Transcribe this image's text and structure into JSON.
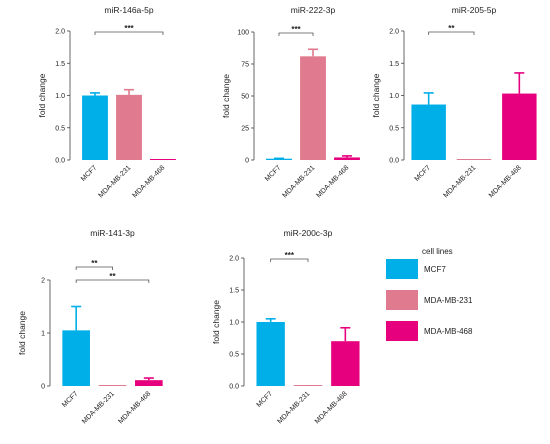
{
  "chart_data": [
    {
      "type": "bar",
      "title": "miR-146a-5p",
      "ylabel": "fold change",
      "categories": [
        "MCF7",
        "MDA-MB-231",
        "MDA-MB-468"
      ],
      "values": [
        1.0,
        1.01,
        0.01
      ],
      "errors": [
        0.04,
        0.08,
        0.0
      ],
      "ylim": [
        0,
        2.0
      ],
      "yticks": [
        "0.0",
        "0.5",
        "1.0",
        "1.5",
        "2.0"
      ],
      "significance": [
        {
          "from": 0,
          "to": 2,
          "label": "***"
        }
      ]
    },
    {
      "type": "bar",
      "title": "miR-222-3p",
      "ylabel": "fold change",
      "categories": [
        "MCF7",
        "MDA-MB-231",
        "MDA-MB-468"
      ],
      "values": [
        1.0,
        81.0,
        2.0
      ],
      "errors": [
        0.3,
        5.5,
        1.2
      ],
      "ylim": [
        0,
        100
      ],
      "yticks": [
        "0",
        "25",
        "50",
        "75",
        "100"
      ],
      "significance": [
        {
          "from": 0,
          "to": 1,
          "label": "***"
        }
      ]
    },
    {
      "type": "bar",
      "title": "miR-205-5p",
      "ylabel": "fold change",
      "categories": [
        "MCF7",
        "MDA-MB-231",
        "MDA-MB-468"
      ],
      "values": [
        0.86,
        0.01,
        1.03
      ],
      "errors": [
        0.18,
        0.0,
        0.32
      ],
      "ylim": [
        0,
        2.0
      ],
      "yticks": [
        "0.0",
        "0.5",
        "1.0",
        "1.5",
        "2.0"
      ],
      "significance": [
        {
          "from": 0,
          "to": 1,
          "label": "**"
        }
      ]
    },
    {
      "type": "bar",
      "title": "miR-141-3p",
      "ylabel": "fold change",
      "categories": [
        "MCF7",
        "MDA-MB-231",
        "MDA-MB-468"
      ],
      "values": [
        1.05,
        0.01,
        0.11
      ],
      "errors": [
        0.45,
        0.0,
        0.04
      ],
      "ylim": [
        0,
        2
      ],
      "yticks": [
        "0",
        "1",
        "2"
      ],
      "significance": [
        {
          "from": 0,
          "to": 1,
          "label": "**"
        },
        {
          "from": 0,
          "to": 2,
          "label": "**"
        }
      ]
    },
    {
      "type": "bar",
      "title": "miR-200c-3p",
      "ylabel": "fold change",
      "categories": [
        "MCF7",
        "MDA-MB-231",
        "MDA-MB-468"
      ],
      "values": [
        1.0,
        0.01,
        0.7
      ],
      "errors": [
        0.05,
        0.0,
        0.21
      ],
      "ylim": [
        0,
        2.0
      ],
      "yticks": [
        "0.0",
        "0.5",
        "1.0",
        "1.5",
        "2.0"
      ],
      "significance": [
        {
          "from": 0,
          "to": 1,
          "label": "***"
        }
      ]
    }
  ],
  "legend": {
    "title": "cell lines",
    "items": [
      {
        "label": "MCF7",
        "color": "#00aee8"
      },
      {
        "label": "MDA-MB-231",
        "color": "#e07a8e"
      },
      {
        "label": "MDA-MB-468",
        "color": "#e6007e"
      }
    ]
  }
}
